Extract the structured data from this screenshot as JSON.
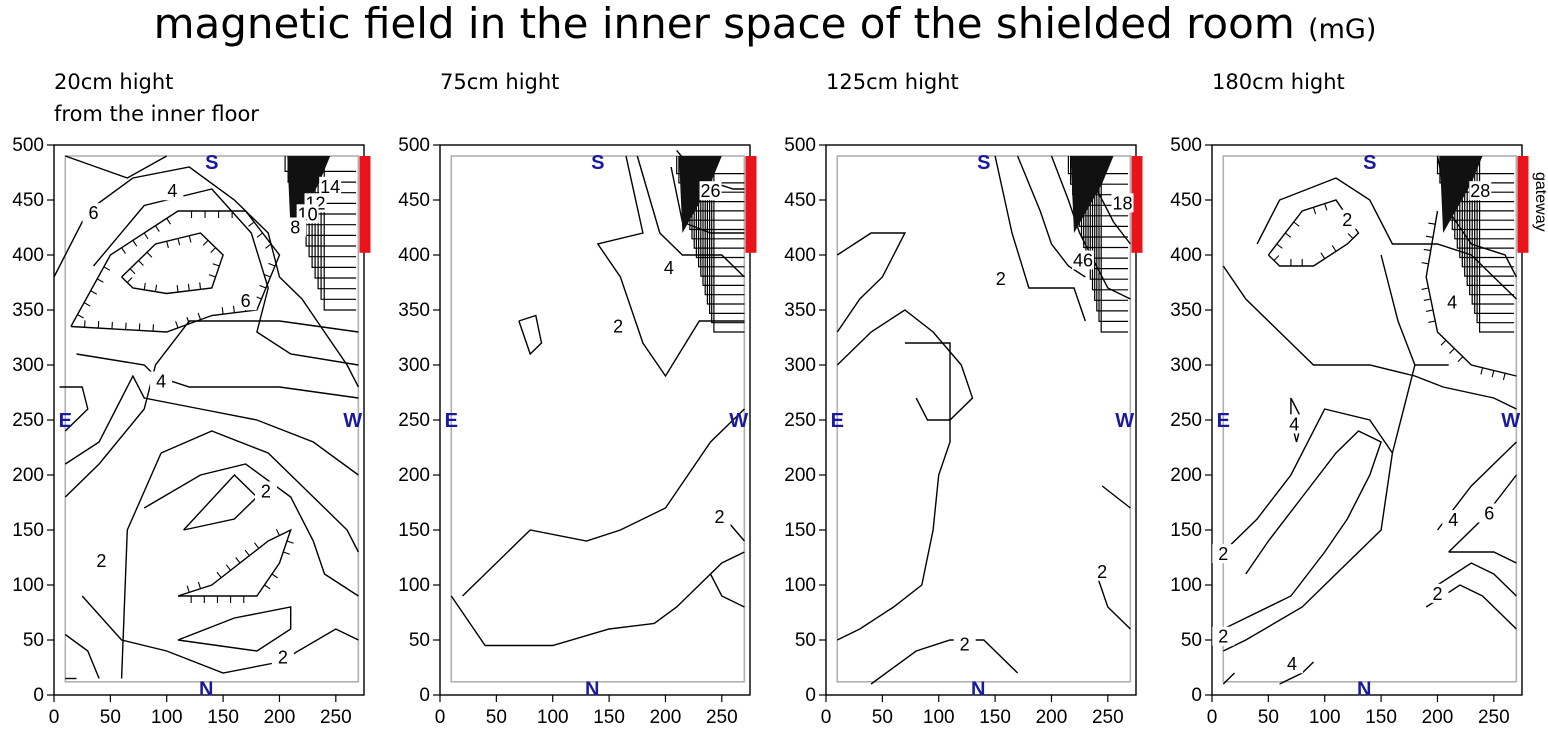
{
  "title": "magnetic field in the inner space of the shielded room",
  "title_unit": "(mG)",
  "panel_labels": [
    {
      "line1": "20cm hight",
      "line2": "from the inner floor"
    },
    {
      "line1": "75cm hight",
      "line2": ""
    },
    {
      "line1": "125cm hight",
      "line2": ""
    },
    {
      "line1": "180cm hight",
      "line2": ""
    }
  ],
  "directions": {
    "south": "S",
    "north": "N",
    "east": "E",
    "west": "W"
  },
  "gateway_label": "gateway",
  "colors": {
    "gateway": "#e8141a",
    "room_outline": "#b0b0b0",
    "direction": "#1a1a9a"
  },
  "chart_data": [
    {
      "type": "contour",
      "xlim": [
        0,
        275
      ],
      "ylim": [
        0,
        500
      ],
      "xticks": [
        0,
        50,
        100,
        150,
        200,
        250
      ],
      "yticks": [
        0,
        50,
        100,
        150,
        200,
        250,
        300,
        350,
        400,
        450,
        500
      ],
      "contour_labels": [
        {
          "text": "6",
          "x": 35,
          "y": 438
        },
        {
          "text": "4",
          "x": 105,
          "y": 458
        },
        {
          "text": "14",
          "x": 245,
          "y": 462
        },
        {
          "text": "12",
          "x": 232,
          "y": 447
        },
        {
          "text": "10",
          "x": 225,
          "y": 437
        },
        {
          "text": "8",
          "x": 214,
          "y": 425
        },
        {
          "text": "6",
          "x": 170,
          "y": 358
        },
        {
          "text": "4",
          "x": 95,
          "y": 285
        },
        {
          "text": "2",
          "x": 188,
          "y": 185
        },
        {
          "text": "2",
          "x": 42,
          "y": 122
        },
        {
          "text": "2",
          "x": 203,
          "y": 34
        }
      ]
    },
    {
      "type": "contour",
      "xlim": [
        0,
        275
      ],
      "ylim": [
        0,
        500
      ],
      "xticks": [
        0,
        50,
        100,
        150,
        200,
        250
      ],
      "yticks": [
        0,
        50,
        100,
        150,
        200,
        250,
        300,
        350,
        400,
        450,
        500
      ],
      "contour_labels": [
        {
          "text": "26",
          "x": 240,
          "y": 458
        },
        {
          "text": "4",
          "x": 203,
          "y": 388
        },
        {
          "text": "2",
          "x": 158,
          "y": 335
        },
        {
          "text": "2",
          "x": 248,
          "y": 162
        }
      ]
    },
    {
      "type": "contour",
      "xlim": [
        0,
        275
      ],
      "ylim": [
        0,
        500
      ],
      "xticks": [
        0,
        50,
        100,
        150,
        200,
        250
      ],
      "yticks": [
        0,
        50,
        100,
        150,
        200,
        250,
        300,
        350,
        400,
        450,
        500
      ],
      "contour_labels": [
        {
          "text": "18",
          "x": 263,
          "y": 447
        },
        {
          "text": "46",
          "x": 228,
          "y": 395
        },
        {
          "text": "2",
          "x": 155,
          "y": 378
        },
        {
          "text": "2",
          "x": 245,
          "y": 112
        },
        {
          "text": "2",
          "x": 123,
          "y": 46
        }
      ]
    },
    {
      "type": "contour",
      "xlim": [
        0,
        275
      ],
      "ylim": [
        0,
        500
      ],
      "xticks": [
        0,
        50,
        100,
        150,
        200,
        250
      ],
      "yticks": [
        0,
        50,
        100,
        150,
        200,
        250,
        300,
        350,
        400,
        450,
        500
      ],
      "contour_labels": [
        {
          "text": "28",
          "x": 238,
          "y": 458
        },
        {
          "text": "2",
          "x": 120,
          "y": 432
        },
        {
          "text": "4",
          "x": 213,
          "y": 357
        },
        {
          "text": "4",
          "x": 73,
          "y": 246
        },
        {
          "text": "4",
          "x": 214,
          "y": 159
        },
        {
          "text": "6",
          "x": 246,
          "y": 165
        },
        {
          "text": "2",
          "x": 10,
          "y": 128
        },
        {
          "text": "2",
          "x": 200,
          "y": 92
        },
        {
          "text": "2",
          "x": 10,
          "y": 53
        },
        {
          "text": "4",
          "x": 71,
          "y": 28
        }
      ]
    }
  ]
}
